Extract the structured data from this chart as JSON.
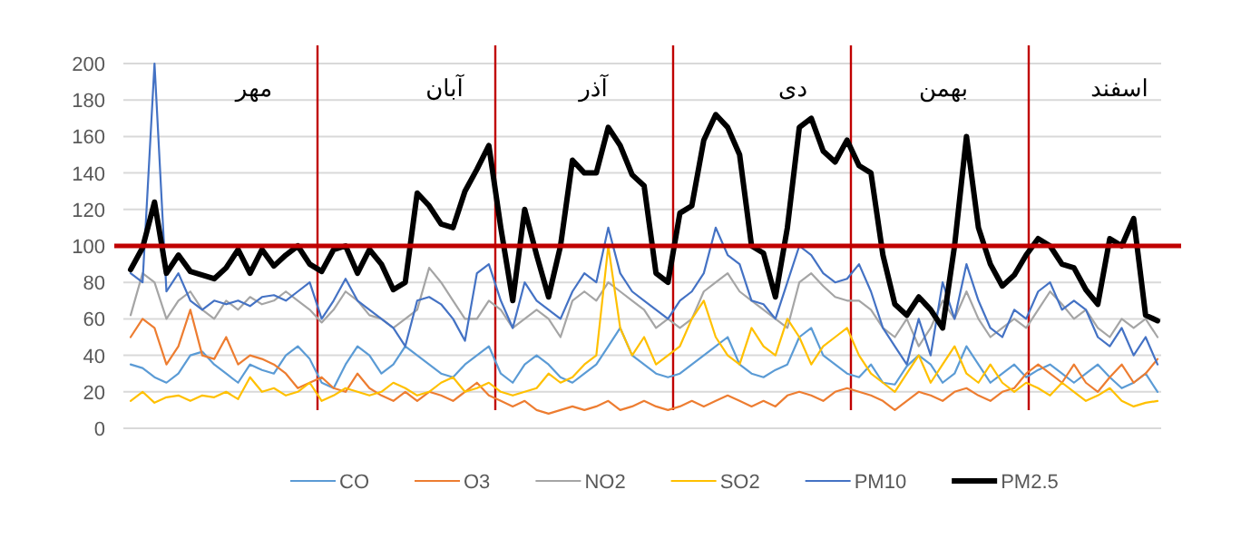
{
  "chart_data": {
    "type": "line",
    "categories": [
      null,
      null,
      null,
      null,
      null,
      null,
      null,
      null,
      null,
      null,
      null,
      null,
      null,
      null,
      null,
      null,
      null,
      null,
      null,
      null,
      null,
      null,
      null,
      null,
      null,
      null,
      null,
      null,
      null,
      null,
      null,
      null,
      null,
      null,
      null,
      null,
      null,
      null,
      null,
      null,
      null,
      null,
      null,
      null,
      null,
      null,
      null,
      null,
      null,
      null,
      null,
      null,
      null,
      null,
      null,
      null,
      null,
      null,
      null,
      null,
      null,
      null,
      null,
      null,
      null,
      null,
      null,
      null,
      null,
      null,
      null,
      null,
      null,
      null,
      null,
      null,
      null,
      null,
      null,
      null,
      null,
      null,
      null,
      null,
      null,
      null,
      null
    ],
    "series": [
      {
        "name": "CO",
        "color": "#5b9bd5",
        "values": [
          35,
          33,
          28,
          25,
          30,
          40,
          42,
          35,
          30,
          25,
          35,
          32,
          30,
          40,
          45,
          38,
          25,
          22,
          35,
          45,
          40,
          30,
          35,
          45,
          40,
          35,
          30,
          28,
          35,
          40,
          45,
          30,
          25,
          35,
          40,
          35,
          28,
          25,
          30,
          35,
          45,
          55,
          40,
          35,
          30,
          28,
          30,
          35,
          40,
          45,
          50,
          35,
          30,
          28,
          32,
          35,
          50,
          55,
          40,
          35,
          30,
          28,
          35,
          25,
          24,
          34,
          40,
          35,
          25,
          30,
          45,
          35,
          25,
          30,
          35,
          28,
          32,
          35,
          30,
          25,
          30,
          35,
          28,
          22,
          25,
          30,
          20
        ]
      },
      {
        "name": "O3",
        "color": "#ed7d31",
        "values": [
          50,
          60,
          55,
          35,
          45,
          65,
          40,
          38,
          50,
          35,
          40,
          38,
          35,
          30,
          22,
          25,
          28,
          22,
          20,
          30,
          22,
          18,
          15,
          20,
          15,
          20,
          18,
          15,
          20,
          25,
          18,
          15,
          12,
          15,
          10,
          8,
          10,
          12,
          10,
          12,
          15,
          10,
          12,
          15,
          12,
          10,
          12,
          15,
          12,
          15,
          18,
          15,
          12,
          15,
          12,
          18,
          20,
          18,
          15,
          20,
          22,
          20,
          18,
          15,
          10,
          15,
          20,
          18,
          15,
          20,
          22,
          18,
          15,
          20,
          22,
          30,
          35,
          30,
          25,
          35,
          25,
          20,
          28,
          35,
          25,
          30,
          38
        ]
      },
      {
        "name": "NO2",
        "color": "#a5a5a5",
        "values": [
          62,
          85,
          80,
          60,
          70,
          75,
          65,
          60,
          70,
          65,
          72,
          68,
          70,
          75,
          70,
          65,
          58,
          65,
          75,
          70,
          62,
          60,
          55,
          60,
          65,
          88,
          80,
          70,
          60,
          60,
          70,
          65,
          55,
          60,
          65,
          60,
          50,
          70,
          75,
          70,
          80,
          75,
          70,
          65,
          55,
          60,
          55,
          60,
          75,
          80,
          85,
          75,
          70,
          65,
          60,
          55,
          80,
          85,
          78,
          72,
          70,
          70,
          65,
          55,
          50,
          60,
          45,
          55,
          70,
          60,
          75,
          60,
          50,
          55,
          60,
          55,
          65,
          75,
          68,
          60,
          65,
          55,
          50,
          60,
          55,
          60,
          50
        ]
      },
      {
        "name": "SO2",
        "color": "#ffc000",
        "values": [
          15,
          20,
          14,
          17,
          18,
          15,
          18,
          17,
          20,
          16,
          28,
          20,
          22,
          18,
          20,
          25,
          15,
          18,
          22,
          20,
          18,
          20,
          25,
          22,
          18,
          20,
          25,
          28,
          20,
          22,
          25,
          20,
          18,
          20,
          22,
          30,
          25,
          28,
          35,
          40,
          100,
          55,
          40,
          50,
          35,
          40,
          45,
          60,
          70,
          50,
          40,
          35,
          55,
          45,
          40,
          60,
          50,
          35,
          45,
          50,
          55,
          40,
          30,
          25,
          20,
          30,
          40,
          25,
          35,
          45,
          30,
          25,
          35,
          25,
          20,
          25,
          22,
          18,
          25,
          20,
          15,
          18,
          22,
          15,
          12,
          14,
          15
        ]
      },
      {
        "name": "PM10",
        "color": "#4472c4",
        "values": [
          85,
          80,
          200,
          75,
          85,
          70,
          65,
          70,
          68,
          70,
          67,
          72,
          73,
          70,
          75,
          80,
          60,
          70,
          82,
          70,
          65,
          60,
          55,
          45,
          70,
          72,
          68,
          60,
          48,
          85,
          90,
          70,
          55,
          80,
          70,
          65,
          60,
          75,
          85,
          80,
          110,
          85,
          75,
          70,
          65,
          60,
          70,
          75,
          85,
          110,
          95,
          90,
          70,
          68,
          60,
          80,
          100,
          95,
          85,
          80,
          82,
          90,
          75,
          55,
          45,
          35,
          60,
          40,
          80,
          60,
          90,
          70,
          55,
          50,
          65,
          60,
          75,
          80,
          65,
          70,
          65,
          50,
          45,
          55,
          40,
          50,
          35
        ]
      },
      {
        "name": "PM2.5",
        "color": "#000000",
        "values": [
          87,
          99,
          124,
          85,
          95,
          86,
          84,
          82,
          88,
          98,
          85,
          98,
          89,
          95,
          100,
          90,
          86,
          98,
          100,
          85,
          98,
          90,
          76,
          80,
          129,
          122,
          112,
          110,
          130,
          142,
          155,
          110,
          70,
          120,
          95,
          72,
          100,
          147,
          140,
          140,
          165,
          155,
          139,
          133,
          85,
          80,
          118,
          122,
          158,
          172,
          165,
          150,
          100,
          96,
          72,
          110,
          165,
          170,
          152,
          146,
          158,
          144,
          140,
          95,
          68,
          62,
          72,
          65,
          55,
          100,
          160,
          110,
          90,
          78,
          84,
          95,
          104,
          100,
          90,
          88,
          76,
          68,
          104,
          100,
          115,
          62,
          59
        ]
      }
    ],
    "ylim": [
      0,
      200
    ],
    "yticks": [
      0,
      20,
      40,
      60,
      80,
      100,
      120,
      140,
      160,
      180,
      200
    ],
    "grid": "y",
    "legend": "bottom",
    "tick_labels": "y",
    "ref_lines": [
      {
        "axis": "y",
        "value": 100,
        "color": "#c00000"
      }
    ],
    "annotations": [
      "مهر",
      "آبان",
      "آذر",
      "دی",
      "بهمن",
      "اسفند"
    ]
  }
}
